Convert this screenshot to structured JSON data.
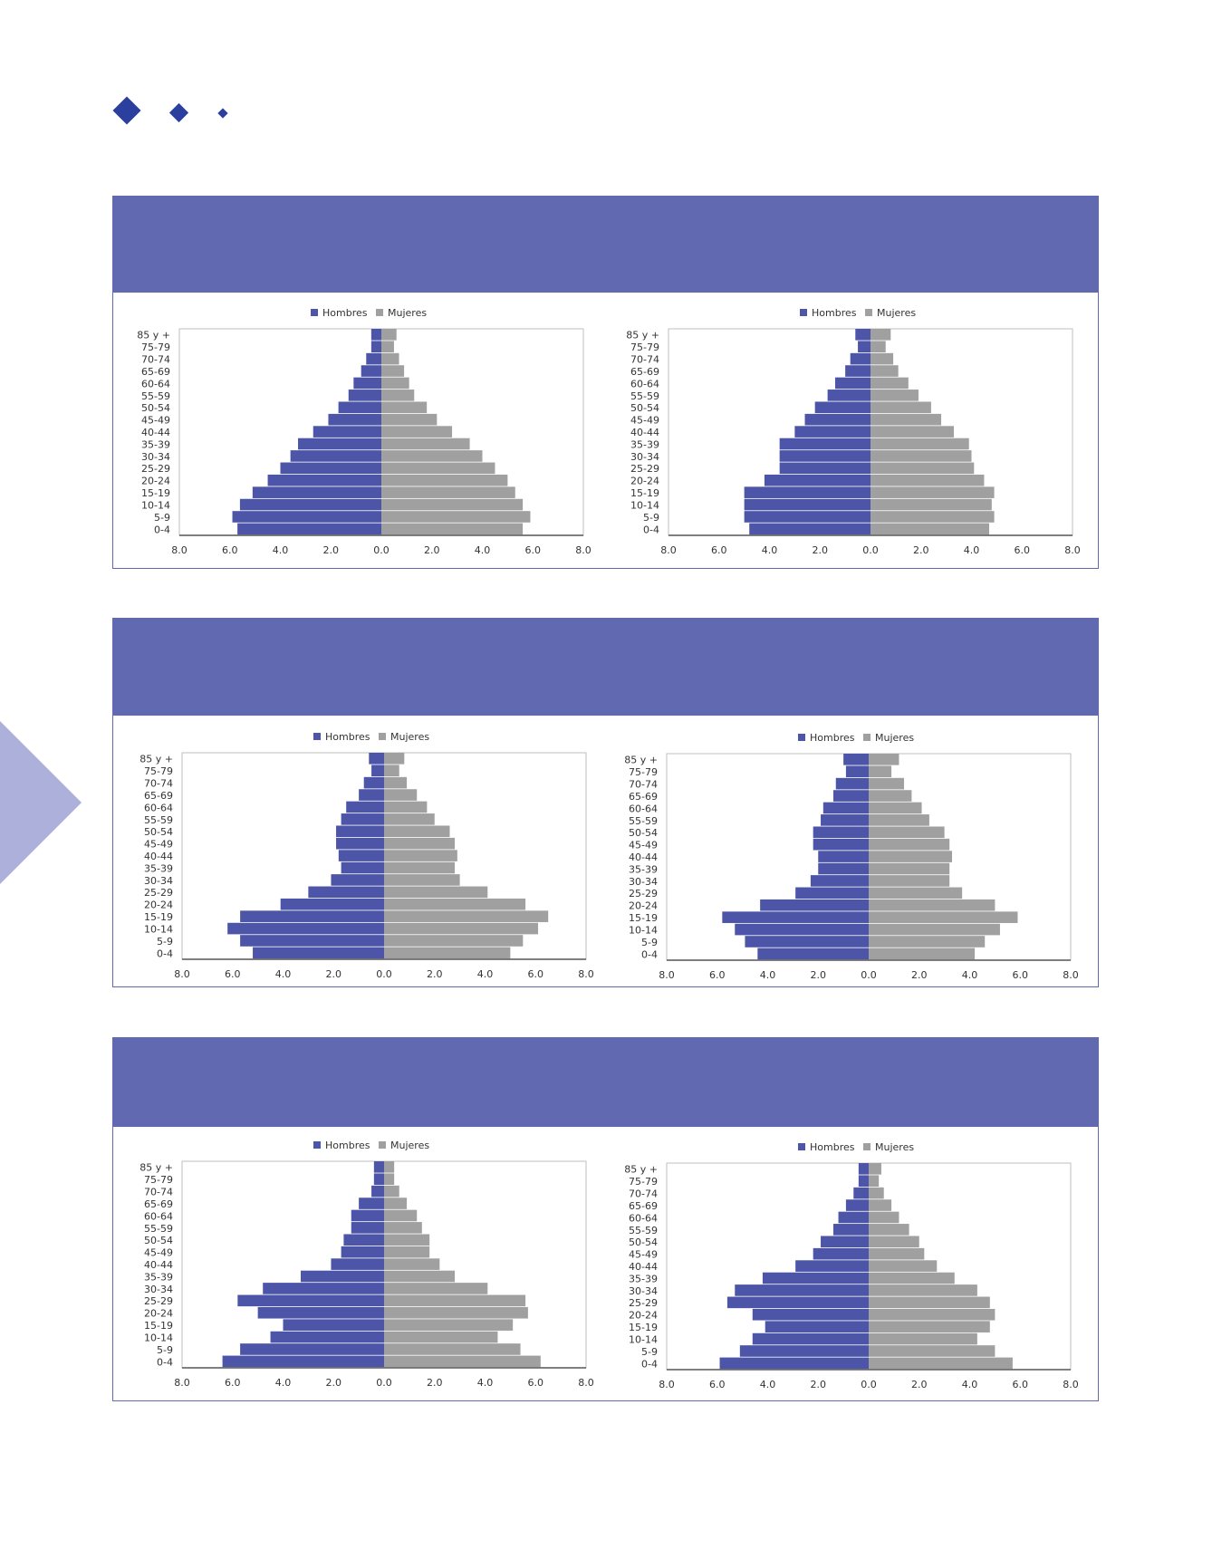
{
  "colors": {
    "hombres": "#4c55a7",
    "mujeres": "#a0a0a0",
    "header": "#6169b1",
    "diamond": "#2b3f9e",
    "triangle": "#adb0db"
  },
  "legend": {
    "hombres": "Hombres",
    "mujeres": "Mujeres"
  },
  "chart_data": [
    {
      "type": "bar",
      "orientation": "horizontal-population-pyramid",
      "categories": [
        "85 y +",
        "75-79",
        "70-74",
        "65-69",
        "60-64",
        "55-59",
        "50-54",
        "45-49",
        "40-44",
        "35-39",
        "30-34",
        "25-29",
        "20-24",
        "15-19",
        "10-14",
        "5-9",
        "0-4"
      ],
      "series": [
        {
          "name": "Hombres",
          "values": [
            0.4,
            0.4,
            0.6,
            0.8,
            1.1,
            1.3,
            1.7,
            2.1,
            2.7,
            3.3,
            3.6,
            4.0,
            4.5,
            5.1,
            5.6,
            5.9,
            5.7
          ]
        },
        {
          "name": "Mujeres",
          "values": [
            0.6,
            0.5,
            0.7,
            0.9,
            1.1,
            1.3,
            1.8,
            2.2,
            2.8,
            3.5,
            4.0,
            4.5,
            5.0,
            5.3,
            5.6,
            5.9,
            5.6
          ]
        }
      ],
      "xticks": [
        "8.0",
        "6.0",
        "4.0",
        "2.0",
        "0.0",
        "2.0",
        "4.0",
        "6.0",
        "8.0"
      ],
      "xlim": [
        -8,
        8
      ]
    },
    {
      "type": "bar",
      "orientation": "horizontal-population-pyramid",
      "categories": [
        "85 y +",
        "75-79",
        "70-74",
        "65-69",
        "60-64",
        "55-59",
        "50-54",
        "45-49",
        "40-44",
        "35-39",
        "30-34",
        "25-29",
        "20-24",
        "15-19",
        "10-14",
        "5-9",
        "0-4"
      ],
      "series": [
        {
          "name": "Hombres",
          "values": [
            0.6,
            0.5,
            0.8,
            1.0,
            1.4,
            1.7,
            2.2,
            2.6,
            3.0,
            3.6,
            3.6,
            3.6,
            4.2,
            5.0,
            5.0,
            5.0,
            4.8
          ]
        },
        {
          "name": "Mujeres",
          "values": [
            0.8,
            0.6,
            0.9,
            1.1,
            1.5,
            1.9,
            2.4,
            2.8,
            3.3,
            3.9,
            4.0,
            4.1,
            4.5,
            4.9,
            4.8,
            4.9,
            4.7
          ]
        }
      ],
      "xticks": [
        "8.0",
        "6.0",
        "4.0",
        "2.0",
        "0.0",
        "2.0",
        "4.0",
        "6.0",
        "8.0"
      ],
      "xlim": [
        -8,
        8
      ]
    },
    {
      "type": "bar",
      "orientation": "horizontal-population-pyramid",
      "categories": [
        "85 y +",
        "75-79",
        "70-74",
        "65-69",
        "60-64",
        "55-59",
        "50-54",
        "45-49",
        "40-44",
        "35-39",
        "30-34",
        "25-29",
        "20-24",
        "15-19",
        "10-14",
        "5-9",
        "0-4"
      ],
      "series": [
        {
          "name": "Hombres",
          "values": [
            0.6,
            0.5,
            0.8,
            1.0,
            1.5,
            1.7,
            1.9,
            1.9,
            1.8,
            1.7,
            2.1,
            3.0,
            4.1,
            5.7,
            6.2,
            5.7,
            5.2
          ]
        },
        {
          "name": "Mujeres",
          "values": [
            0.8,
            0.6,
            0.9,
            1.3,
            1.7,
            2.0,
            2.6,
            2.8,
            2.9,
            2.8,
            3.0,
            4.1,
            5.6,
            6.5,
            6.1,
            5.5,
            5.0
          ]
        }
      ],
      "xticks": [
        "8.0",
        "6.0",
        "4.0",
        "2.0",
        "0.0",
        "2.0",
        "4.0",
        "6.0",
        "8.0"
      ],
      "xlim": [
        -8,
        8
      ]
    },
    {
      "type": "bar",
      "orientation": "horizontal-population-pyramid",
      "categories": [
        "85 y +",
        "75-79",
        "70-74",
        "65-69",
        "60-64",
        "55-59",
        "50-54",
        "45-49",
        "40-44",
        "35-39",
        "30-34",
        "25-29",
        "20-24",
        "15-19",
        "10-14",
        "5-9",
        "0-4"
      ],
      "series": [
        {
          "name": "Hombres",
          "values": [
            1.0,
            0.9,
            1.3,
            1.4,
            1.8,
            1.9,
            2.2,
            2.2,
            2.0,
            2.0,
            2.3,
            2.9,
            4.3,
            5.8,
            5.3,
            4.9,
            4.4
          ]
        },
        {
          "name": "Mujeres",
          "values": [
            1.2,
            0.9,
            1.4,
            1.7,
            2.1,
            2.4,
            3.0,
            3.2,
            3.3,
            3.2,
            3.2,
            3.7,
            5.0,
            5.9,
            5.2,
            4.6,
            4.2
          ]
        }
      ],
      "xticks": [
        "8.0",
        "6.0",
        "4.0",
        "2.0",
        "0.0",
        "2.0",
        "4.0",
        "6.0",
        "8.0"
      ],
      "xlim": [
        -8,
        8
      ]
    },
    {
      "type": "bar",
      "orientation": "horizontal-population-pyramid",
      "categories": [
        "85 y +",
        "75-79",
        "70-74",
        "65-69",
        "60-64",
        "55-59",
        "50-54",
        "45-49",
        "40-44",
        "35-39",
        "30-34",
        "25-29",
        "20-24",
        "15-19",
        "10-14",
        "5-9",
        "0-4"
      ],
      "series": [
        {
          "name": "Hombres",
          "values": [
            0.4,
            0.4,
            0.5,
            1.0,
            1.3,
            1.3,
            1.6,
            1.7,
            2.1,
            3.3,
            4.8,
            5.8,
            5.0,
            4.0,
            4.5,
            5.7,
            6.4
          ]
        },
        {
          "name": "Mujeres",
          "values": [
            0.4,
            0.4,
            0.6,
            0.9,
            1.3,
            1.5,
            1.8,
            1.8,
            2.2,
            2.8,
            4.1,
            5.6,
            5.7,
            5.1,
            4.5,
            5.4,
            6.2
          ]
        }
      ],
      "xticks": [
        "8.0",
        "6.0",
        "4.0",
        "2.0",
        "0.0",
        "2.0",
        "4.0",
        "6.0",
        "8.0"
      ],
      "xlim": [
        -8,
        8
      ]
    },
    {
      "type": "bar",
      "orientation": "horizontal-population-pyramid",
      "categories": [
        "85 y +",
        "75-79",
        "70-74",
        "65-69",
        "60-64",
        "55-59",
        "50-54",
        "45-49",
        "40-44",
        "35-39",
        "30-34",
        "25-29",
        "20-24",
        "15-19",
        "10-14",
        "5-9",
        "0-4"
      ],
      "series": [
        {
          "name": "Hombres",
          "values": [
            0.4,
            0.4,
            0.6,
            0.9,
            1.2,
            1.4,
            1.9,
            2.2,
            2.9,
            4.2,
            5.3,
            5.6,
            4.6,
            4.1,
            4.6,
            5.1,
            5.9
          ]
        },
        {
          "name": "Mujeres",
          "values": [
            0.5,
            0.4,
            0.6,
            0.9,
            1.2,
            1.6,
            2.0,
            2.2,
            2.7,
            3.4,
            4.3,
            4.8,
            5.0,
            4.8,
            4.3,
            5.0,
            5.7
          ]
        }
      ],
      "xticks": [
        "8.0",
        "6.0",
        "4.0",
        "2.0",
        "0.0",
        "2.0",
        "4.0",
        "6.0",
        "8.0"
      ],
      "xlim": [
        -8,
        8
      ]
    }
  ]
}
